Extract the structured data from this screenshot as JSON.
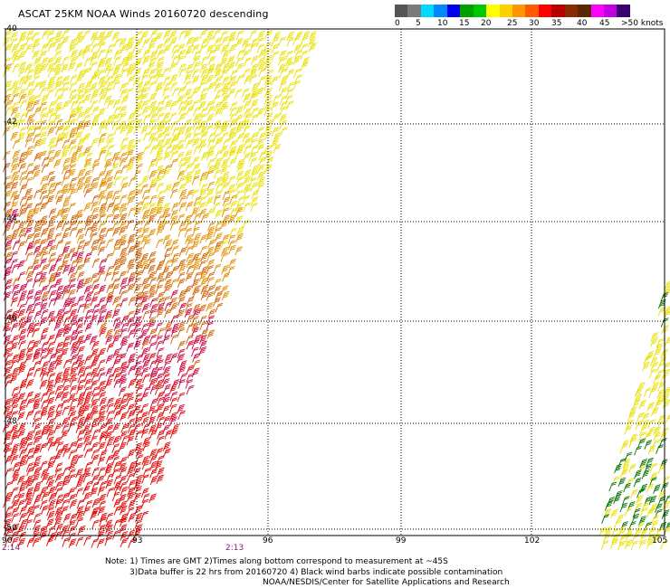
{
  "title": "ASCAT 25KM NOAA Winds 20160720 descending",
  "colorbar": {
    "colors": [
      "#555555",
      "#7a7a7a",
      "#00d8ff",
      "#0088ff",
      "#0000ee",
      "#00a000",
      "#00c800",
      "#ffff00",
      "#ffd000",
      "#ff9600",
      "#ff5a00",
      "#ff0000",
      "#b40000",
      "#8a2a00",
      "#5a2800",
      "#ff00ff",
      "#c000e0",
      "#3a0070"
    ],
    "labels": [
      "0",
      "5",
      "10",
      "15",
      "20",
      "25",
      "30",
      "35",
      "40",
      "45",
      ">50 knots"
    ]
  },
  "lat_labels": [
    "-40",
    "-42",
    "-44",
    "-46",
    "-48",
    "-50"
  ],
  "lon_labels": [
    "90",
    "93",
    "96",
    "99",
    "102",
    "105"
  ],
  "time_labels": [
    "2:14",
    "2:13"
  ],
  "notes": [
    "Note: 1) Times are GMT 2)Times along bottom correspond to measurement at ~45S",
    "3)Data buffer is 22 hrs from 20160720 4) Black wind barbs indicate possible contamination",
    "NOAA/NESDIS/Center for Satellite Applications and Research"
  ],
  "wind_colors": {
    "yellow": "#e8e000",
    "orange": "#e09000",
    "dark_orange": "#d06000",
    "red": "#e00000",
    "crimson": "#c8003c",
    "green": "#007000"
  }
}
